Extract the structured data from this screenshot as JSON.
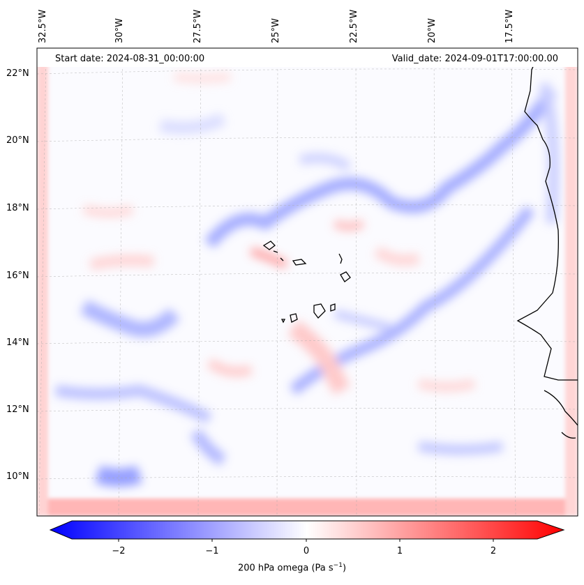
{
  "map": {
    "start_date": "Start date: 2024-08-31_00:00:00",
    "valid_date": "Valid_date: 2024-09-01T17:00:00.00",
    "lon_labels": [
      "32.5°W",
      "30°W",
      "27.5°W",
      "25°W",
      "22.5°W",
      "20°W",
      "17.5°W"
    ],
    "lat_labels": [
      "22°N",
      "20°N",
      "18°N",
      "16°N",
      "14°N",
      "12°N",
      "10°N"
    ],
    "colorbar": {
      "ticks": [
        "−2",
        "−1",
        "0",
        "1",
        "2"
      ],
      "label_prefix": "200 hPa omega (Pa s",
      "label_sup": "−1",
      "label_suffix": ")",
      "range": [
        -2.75,
        2.75
      ],
      "colors": {
        "negative": "#0000ff",
        "zero": "#ffffff",
        "positive": "#ff0000"
      }
    }
  }
}
